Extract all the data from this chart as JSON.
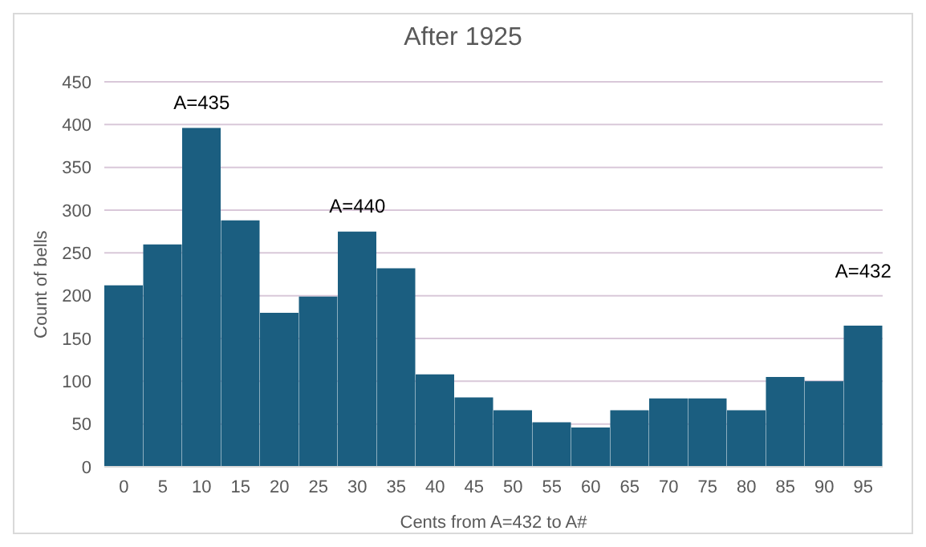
{
  "chart_data": {
    "type": "bar",
    "title": "After 1925",
    "xlabel": "Cents from A=432 to A#",
    "ylabel": "Count of bells",
    "categories": [
      "0",
      "5",
      "10",
      "15",
      "20",
      "25",
      "30",
      "35",
      "40",
      "45",
      "50",
      "55",
      "60",
      "65",
      "70",
      "75",
      "80",
      "85",
      "90",
      "95"
    ],
    "values": [
      212,
      260,
      396,
      288,
      180,
      199,
      275,
      232,
      108,
      81,
      66,
      52,
      46,
      66,
      80,
      80,
      66,
      105,
      100,
      165
    ],
    "color": "#1b5e80",
    "ylim": [
      0,
      450
    ],
    "yticks": [
      0,
      50,
      100,
      150,
      200,
      250,
      300,
      350,
      400,
      450
    ],
    "grid": "y",
    "legend": false,
    "annotations": [
      {
        "text": "A=435",
        "x": "10",
        "y": 396
      },
      {
        "text": "A=440",
        "x": "30",
        "y": 275
      },
      {
        "text": "A=432",
        "x": "95",
        "y": 165
      }
    ]
  }
}
